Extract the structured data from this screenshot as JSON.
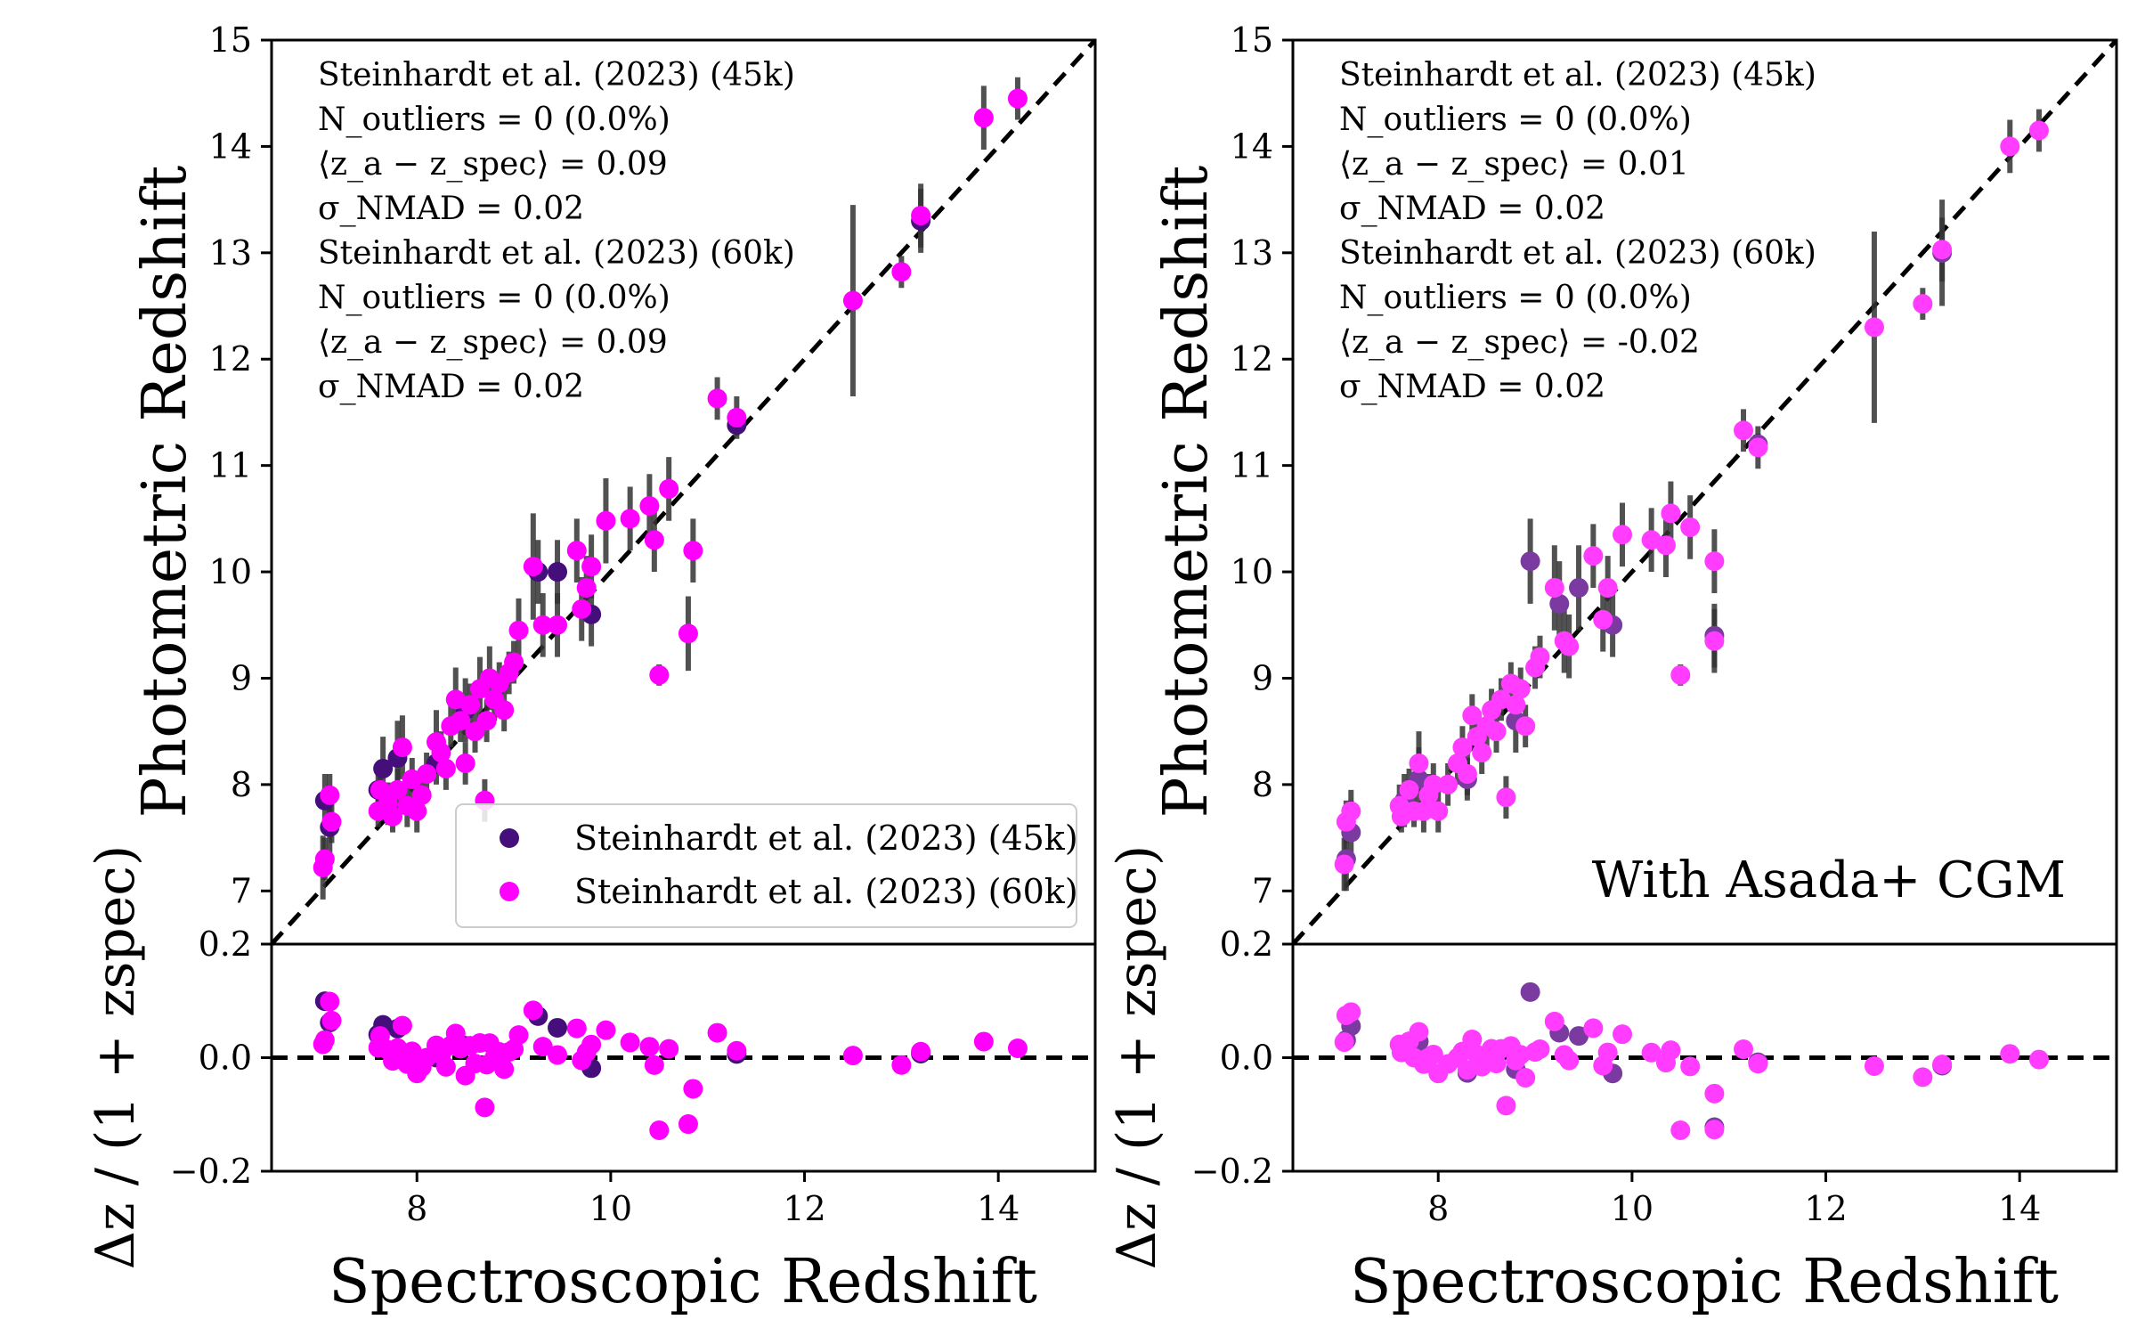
{
  "chart_data": [
    {
      "type": "scatter",
      "panel": "left",
      "ylabel": "Photometric Redshift",
      "resid_ylabel": "Δz / (1 + zspec)",
      "xlabel": "Spectroscopic Redshift",
      "xlim": [
        6.5,
        15.0
      ],
      "ylim": [
        6.5,
        15.0
      ],
      "resid_ylim": [
        -0.2,
        0.2
      ],
      "xticks": [
        "8",
        "10",
        "12",
        "14"
      ],
      "yticks": [
        "7",
        "8",
        "9",
        "10",
        "11",
        "12",
        "13",
        "14",
        "15"
      ],
      "resid_yticks": [
        "0.2",
        "0.0",
        "−0.2"
      ],
      "one_to_one_line": true,
      "stats": [
        {
          "name": "Steinhardt et al. (2023) (45k)",
          "outliers": "N_outliers = 0 (0.0%)",
          "bias": "⟨z_a − z_spec⟩ = 0.09",
          "nmad": "σ_NMAD = 0.02"
        },
        {
          "name": "Steinhardt et al. (2023) (60k)",
          "outliers": "N_outliers = 0 (0.0%)",
          "bias": "⟨z_a − z_spec⟩ = 0.09",
          "nmad": "σ_NMAD = 0.02"
        }
      ],
      "legend": {
        "placement": "bottom-right",
        "entries": [
          "Steinhardt et al. (2023) (45k)",
          "Steinhardt et al. (2023) (60k)"
        ]
      },
      "annotation": "",
      "series": [
        {
          "name": "Steinhardt et al. (2023) (45k)",
          "color": "#440f7a",
          "points": [
            [
              7.05,
              7.85,
              0.25
            ],
            [
              7.1,
              7.6,
              0.3
            ],
            [
              7.6,
              7.95,
              0.2
            ],
            [
              7.65,
              8.15,
              0.3
            ],
            [
              7.8,
              8.25,
              0.35
            ],
            [
              8.2,
              8.2,
              0.2
            ],
            [
              8.5,
              8.7,
              0.3
            ],
            [
              9.25,
              10.0,
              0.3
            ],
            [
              9.45,
              10.0,
              0.3
            ],
            [
              9.8,
              9.6,
              0.3
            ],
            [
              11.3,
              11.38,
              0.1
            ],
            [
              13.2,
              13.3,
              0.3
            ]
          ]
        },
        {
          "name": "Steinhardt et al. (2023) (60k)",
          "color": "#ff00ff",
          "points": [
            [
              7.03,
              7.22,
              0.3
            ],
            [
              7.05,
              7.3,
              0.2
            ],
            [
              7.1,
              7.9,
              0.2
            ],
            [
              7.12,
              7.65,
              0.2
            ],
            [
              7.6,
              7.75,
              0.15
            ],
            [
              7.62,
              7.95,
              0.15
            ],
            [
              7.7,
              7.82,
              0.2
            ],
            [
              7.75,
              7.7,
              0.15
            ],
            [
              7.8,
              7.95,
              0.2
            ],
            [
              7.85,
              8.35,
              0.3
            ],
            [
              7.9,
              7.8,
              0.2
            ],
            [
              7.95,
              8.05,
              0.2
            ],
            [
              8.0,
              7.75,
              0.2
            ],
            [
              8.05,
              7.9,
              0.2
            ],
            [
              8.1,
              8.1,
              0.2
            ],
            [
              8.2,
              8.4,
              0.3
            ],
            [
              8.25,
              8.3,
              0.2
            ],
            [
              8.3,
              8.15,
              0.2
            ],
            [
              8.35,
              8.55,
              0.2
            ],
            [
              8.4,
              8.8,
              0.3
            ],
            [
              8.45,
              8.6,
              0.2
            ],
            [
              8.5,
              8.2,
              0.2
            ],
            [
              8.55,
              8.75,
              0.2
            ],
            [
              8.6,
              8.5,
              0.2
            ],
            [
              8.65,
              8.9,
              0.3
            ],
            [
              8.7,
              7.85,
              0.2
            ],
            [
              8.72,
              8.6,
              0.2
            ],
            [
              8.75,
              9.0,
              0.3
            ],
            [
              8.8,
              8.8,
              0.2
            ],
            [
              8.85,
              8.95,
              0.2
            ],
            [
              8.9,
              8.7,
              0.2
            ],
            [
              8.95,
              9.05,
              0.2
            ],
            [
              9.0,
              9.15,
              0.2
            ],
            [
              9.05,
              9.45,
              0.3
            ],
            [
              9.2,
              10.05,
              0.5
            ],
            [
              9.3,
              9.5,
              0.3
            ],
            [
              9.45,
              9.5,
              0.3
            ],
            [
              9.65,
              10.2,
              0.3
            ],
            [
              9.7,
              9.65,
              0.3
            ],
            [
              9.75,
              9.85,
              0.3
            ],
            [
              9.8,
              10.05,
              0.3
            ],
            [
              9.95,
              10.48,
              0.4
            ],
            [
              10.2,
              10.5,
              0.3
            ],
            [
              10.4,
              10.62,
              0.3
            ],
            [
              10.45,
              10.3,
              0.3
            ],
            [
              10.5,
              9.03,
              0.1
            ],
            [
              10.6,
              10.78,
              0.3
            ],
            [
              10.8,
              9.42,
              0.35
            ],
            [
              10.85,
              10.2,
              0.3
            ],
            [
              11.1,
              11.63,
              0.2
            ],
            [
              11.3,
              11.45,
              0.2
            ],
            [
              12.5,
              12.55,
              0.9
            ],
            [
              13.0,
              12.82,
              0.15
            ],
            [
              13.2,
              13.35,
              0.3
            ],
            [
              13.85,
              14.27,
              0.3
            ],
            [
              14.2,
              14.45,
              0.2
            ]
          ]
        }
      ]
    },
    {
      "type": "scatter",
      "panel": "right",
      "ylabel": "Photometric Redshift",
      "resid_ylabel": "Δz / (1 + zspec)",
      "xlabel": "Spectroscopic Redshift",
      "xlim": [
        6.5,
        15.0
      ],
      "ylim": [
        6.5,
        15.0
      ],
      "resid_ylim": [
        -0.2,
        0.2
      ],
      "xticks": [
        "8",
        "10",
        "12",
        "14"
      ],
      "yticks": [
        "7",
        "8",
        "9",
        "10",
        "11",
        "12",
        "13",
        "14",
        "15"
      ],
      "resid_yticks": [
        "0.2",
        "0.0",
        "−0.2"
      ],
      "one_to_one_line": true,
      "stats": [
        {
          "name": "Steinhardt et al. (2023) (45k)",
          "outliers": "N_outliers = 0 (0.0%)",
          "bias": "⟨z_a − z_spec⟩ = 0.01",
          "nmad": "σ_NMAD = 0.02"
        },
        {
          "name": "Steinhardt et al. (2023) (60k)",
          "outliers": "N_outliers = 0 (0.0%)",
          "bias": "⟨z_a − z_spec⟩ = -0.02",
          "nmad": "σ_NMAD = 0.02"
        }
      ],
      "legend": null,
      "annotation": "With Asada+ CGM",
      "series": [
        {
          "name": "Steinhardt et al. (2023) (45k)",
          "color": "#7a3aa0",
          "points": [
            [
              7.05,
              7.3,
              0.3
            ],
            [
              7.1,
              7.55,
              0.3
            ],
            [
              7.65,
              7.85,
              0.25
            ],
            [
              7.8,
              8.05,
              0.3
            ],
            [
              8.3,
              8.05,
              0.2
            ],
            [
              8.8,
              8.6,
              0.3
            ],
            [
              8.95,
              10.1,
              0.4
            ],
            [
              9.25,
              9.7,
              0.4
            ],
            [
              9.45,
              9.85,
              0.4
            ],
            [
              9.8,
              9.5,
              0.3
            ],
            [
              10.85,
              9.4,
              0.3
            ],
            [
              11.3,
              11.2,
              0.1
            ],
            [
              13.2,
              13.0,
              0.5
            ]
          ]
        },
        {
          "name": "Steinhardt et al. (2023) (60k)",
          "color": "#ff3cff",
          "points": [
            [
              7.03,
              7.25,
              0.25
            ],
            [
              7.05,
              7.65,
              0.2
            ],
            [
              7.1,
              7.75,
              0.2
            ],
            [
              7.6,
              7.8,
              0.2
            ],
            [
              7.62,
              7.7,
              0.15
            ],
            [
              7.7,
              7.95,
              0.2
            ],
            [
              7.75,
              7.75,
              0.15
            ],
            [
              7.8,
              8.2,
              0.3
            ],
            [
              7.85,
              7.75,
              0.2
            ],
            [
              7.9,
              7.9,
              0.2
            ],
            [
              7.95,
              8.0,
              0.2
            ],
            [
              8.0,
              7.75,
              0.2
            ],
            [
              8.1,
              8.0,
              0.2
            ],
            [
              8.2,
              8.2,
              0.2
            ],
            [
              8.25,
              8.35,
              0.2
            ],
            [
              8.3,
              8.1,
              0.2
            ],
            [
              8.35,
              8.65,
              0.2
            ],
            [
              8.4,
              8.45,
              0.2
            ],
            [
              8.45,
              8.3,
              0.2
            ],
            [
              8.5,
              8.55,
              0.2
            ],
            [
              8.55,
              8.7,
              0.2
            ],
            [
              8.6,
              8.5,
              0.2
            ],
            [
              8.65,
              8.8,
              0.2
            ],
            [
              8.7,
              7.88,
              0.2
            ],
            [
              8.75,
              8.95,
              0.2
            ],
            [
              8.8,
              8.75,
              0.2
            ],
            [
              8.85,
              8.9,
              0.2
            ],
            [
              8.9,
              8.55,
              0.2
            ],
            [
              9.0,
              9.1,
              0.2
            ],
            [
              9.05,
              9.2,
              0.2
            ],
            [
              9.2,
              9.85,
              0.4
            ],
            [
              9.3,
              9.35,
              0.3
            ],
            [
              9.35,
              9.3,
              0.3
            ],
            [
              9.6,
              10.15,
              0.3
            ],
            [
              9.7,
              9.55,
              0.3
            ],
            [
              9.75,
              9.85,
              0.3
            ],
            [
              9.9,
              10.35,
              0.3
            ],
            [
              10.2,
              10.3,
              0.3
            ],
            [
              10.35,
              10.25,
              0.3
            ],
            [
              10.4,
              10.55,
              0.3
            ],
            [
              10.5,
              9.03,
              0.1
            ],
            [
              10.6,
              10.42,
              0.3
            ],
            [
              10.85,
              10.1,
              0.3
            ],
            [
              10.85,
              9.35,
              0.3
            ],
            [
              11.15,
              11.33,
              0.2
            ],
            [
              11.3,
              11.17,
              0.2
            ],
            [
              12.5,
              12.3,
              0.9
            ],
            [
              13.0,
              12.52,
              0.15
            ],
            [
              13.2,
              13.03,
              0.3
            ],
            [
              13.9,
              14.0,
              0.25
            ],
            [
              14.2,
              14.15,
              0.2
            ]
          ]
        }
      ]
    }
  ]
}
